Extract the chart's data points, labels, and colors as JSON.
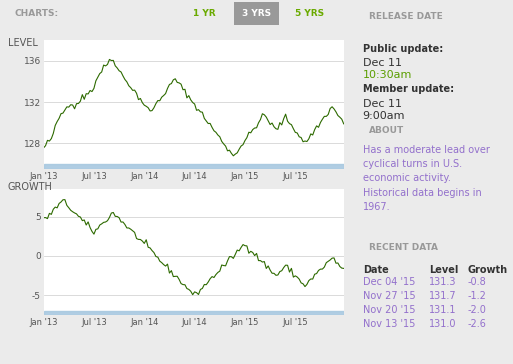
{
  "bg_color": "#ebebeb",
  "chart_bg": "#ffffff",
  "chart_line_color": "#2d6a00",
  "header_bg": "#dcdcdc",
  "header_text_color": "#888888",
  "tab_active_bg": "#999999",
  "tab_inactive_text": "#6aaa00",
  "title_text": "CHARTS:",
  "tabs": [
    "1 YR",
    "3 YRS",
    "5 YRS"
  ],
  "active_tab": 1,
  "level_label": "LEVEL",
  "growth_label": "GROWTH",
  "level_yticks": [
    128,
    132,
    136
  ],
  "level_ylim": [
    125.5,
    138.0
  ],
  "growth_yticks": [
    -5,
    0,
    5
  ],
  "growth_ylim": [
    -7.5,
    8.5
  ],
  "xtick_labels": [
    "Jan '13",
    "Jul '13",
    "Jan '14",
    "Jul '14",
    "Jan '15",
    "Jul '15"
  ],
  "xtick_positions": [
    0,
    26,
    52,
    78,
    104,
    130
  ],
  "n_points": 156,
  "release_date_header": "RELEASE DATE",
  "public_update_label": "Public update:",
  "public_date": "Dec 11",
  "public_time": "10:30am",
  "member_update_label": "Member update:",
  "member_date": "Dec 11",
  "member_time": "9:00am",
  "about_header": "ABOUT",
  "about_text": "Has a moderate lead over\ncyclical turns in U.S.\neconomic activity.\nHistorical data begins in\n1967.",
  "recent_data_header": "RECENT DATA",
  "recent_data_cols": [
    "Date",
    "Level",
    "Growth"
  ],
  "recent_data_rows": [
    [
      "Dec 04 '15",
      "131.3",
      "-0.8"
    ],
    [
      "Nov 27 '15",
      "131.7",
      "-1.2"
    ],
    [
      "Nov 20 '15",
      "131.1",
      "-2.0"
    ],
    [
      "Nov 13 '15",
      "131.0",
      "-2.6"
    ]
  ],
  "green_text_color": "#5a9e00",
  "dark_text_color": "#333333",
  "purple_text_color": "#9370cc",
  "section_header_bg": "#d5d5d5",
  "section_header_text": "#999999",
  "grid_color": "#cccccc",
  "blue_bar_color": "#a8c8e0",
  "separator_color": "#cccccc"
}
